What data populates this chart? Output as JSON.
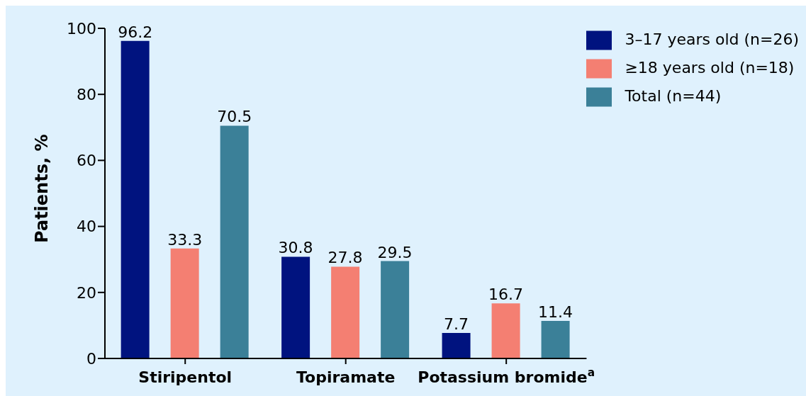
{
  "chart_data": {
    "type": "bar",
    "ylabel": "Patients, %",
    "categories": [
      "Stiripentol",
      "Topiramate",
      "Potassium bromide$^{a}$"
    ],
    "series": [
      {
        "name": "3–17 years old (n=26)",
        "color": "#00137f",
        "values": [
          96.2,
          30.8,
          7.7
        ]
      },
      {
        "name": "≥18 years old (n=18)",
        "color": "#f47f72",
        "values": [
          33.3,
          27.8,
          16.7
        ]
      },
      {
        "name": "Total (n=44)",
        "color": "#3b8098",
        "values": [
          70.5,
          29.5,
          11.4
        ]
      }
    ],
    "ylim": [
      0,
      100
    ],
    "yticks": [
      0,
      20,
      40,
      60,
      80,
      100
    ],
    "grid": false,
    "legend": "top right",
    "data_labels": true
  }
}
